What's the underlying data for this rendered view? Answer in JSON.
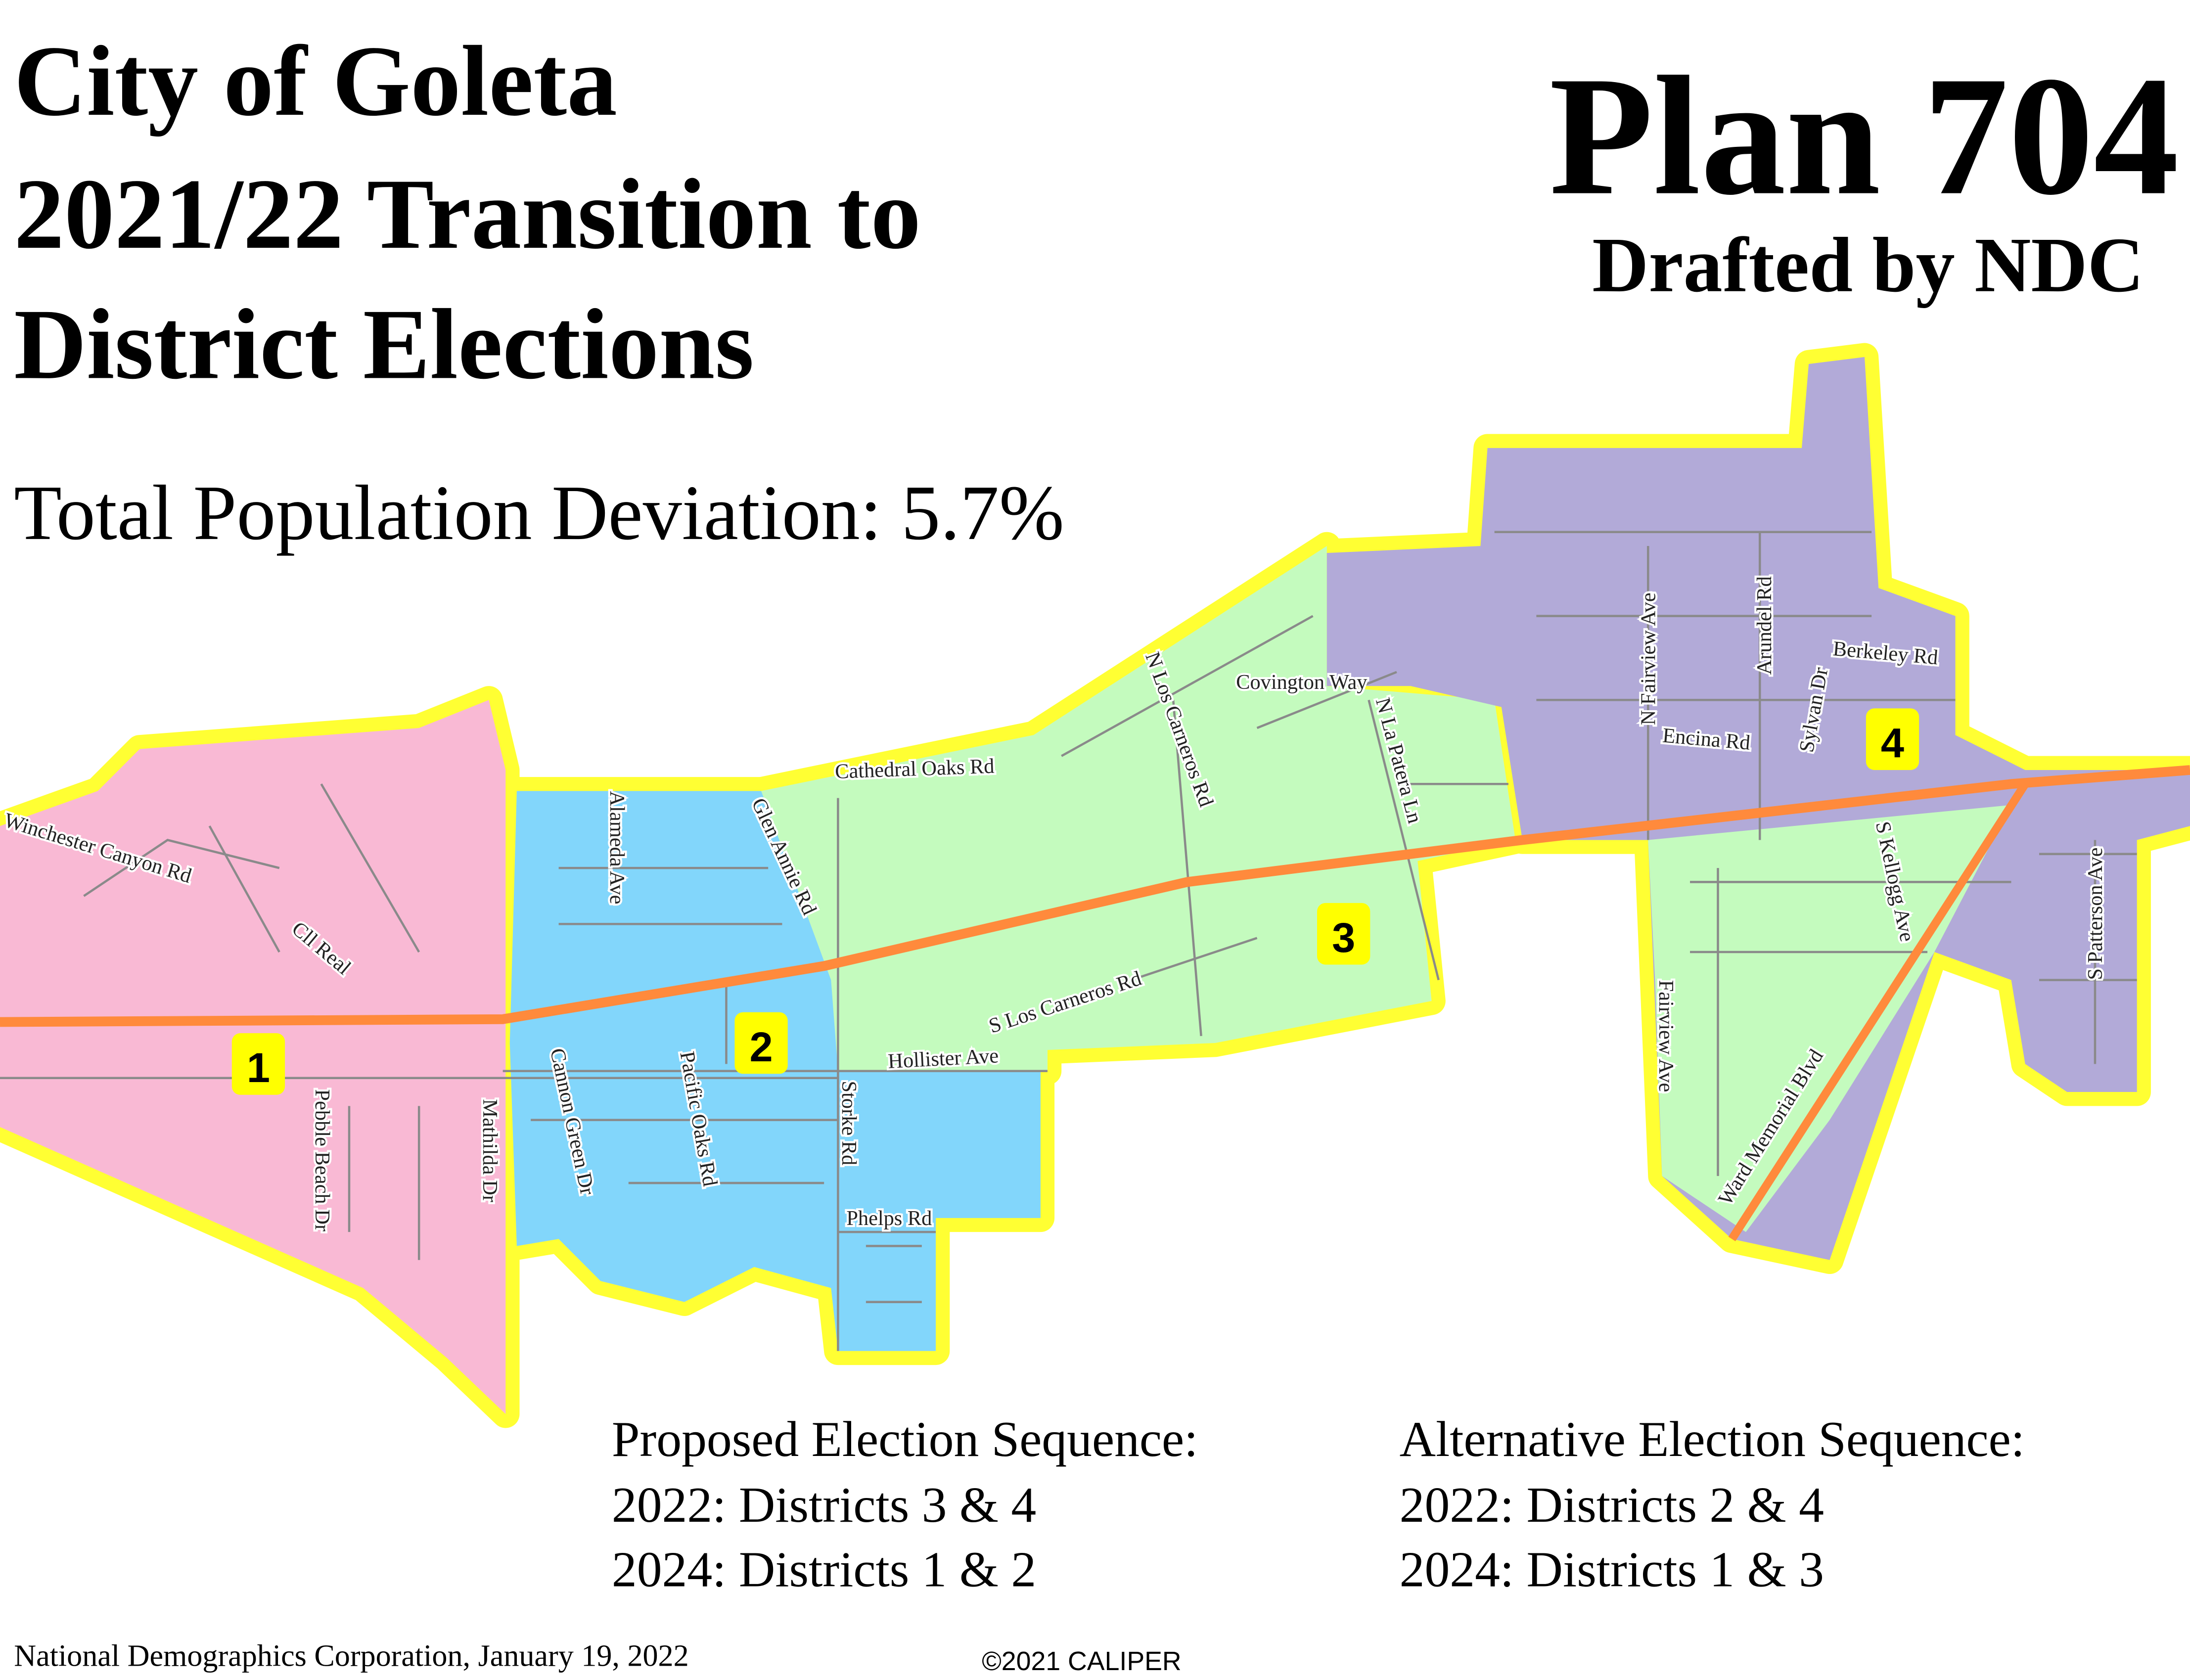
{
  "header": {
    "title_lines": [
      "City of Goleta",
      "2021/22 Transition to",
      "District Elections"
    ],
    "plan": "Plan 704",
    "drafted_by": "Drafted by NDC",
    "deviation": "Total Population Deviation: 5.7%"
  },
  "districts": [
    {
      "label": "1"
    },
    {
      "label": "2"
    },
    {
      "label": "3"
    },
    {
      "label": "4"
    }
  ],
  "streets": [
    "Winchester Canyon Rd",
    "Cll Real",
    "Pebble Beach Dr",
    "Mathilda Dr",
    "Cannon Green Dr",
    "Alameda Ave",
    "Pacific Oaks Rd",
    "Glen Annie Rd",
    "Storke Rd",
    "Phelps Rd",
    "Hollister Ave",
    "Cathedral Oaks Rd",
    "N Los Carneros Rd",
    "S Los Carneros Rd",
    "Covington Way",
    "N La Patera Ln",
    "N Fairview Ave",
    "Arundel Rd",
    "Sylvan Dr",
    "Berkeley Rd",
    "Encina Rd",
    "Fairview Ave",
    "S Kellogg Ave",
    "Ward Memorial Blvd",
    "S Patterson Ave"
  ],
  "sequences": [
    {
      "title": "Proposed Election Sequence:",
      "lines": [
        "2022: Districts 3 & 4",
        "2024: Districts 1 & 2"
      ]
    },
    {
      "title": "Alternative Election Sequence:",
      "lines": [
        "2022: Districts 2 & 4",
        "2024: Districts 1 & 3"
      ]
    }
  ],
  "footer": {
    "credit": "National Demographics Corporation, January 19, 2022",
    "copyright": "©2021 CALIPER"
  }
}
